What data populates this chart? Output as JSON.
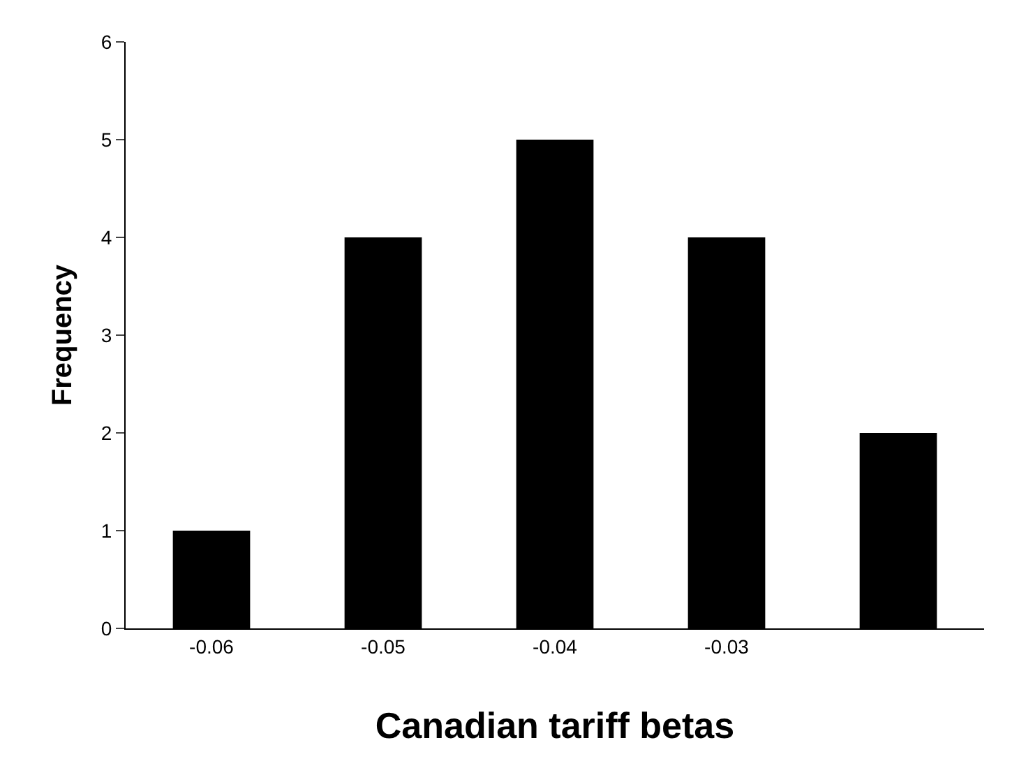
{
  "chart_data": {
    "type": "bar",
    "xlabel": "Canadian tariff betas",
    "ylabel": "Frequency",
    "categories": [
      "-0.06",
      "-0.05",
      "-0.04",
      "-0.03",
      null
    ],
    "values": [
      1,
      4,
      5,
      4,
      2
    ],
    "color": "#000000",
    "ylim": [
      0,
      6
    ],
    "yticks": [
      0,
      1,
      2,
      3,
      4,
      5,
      6
    ]
  }
}
